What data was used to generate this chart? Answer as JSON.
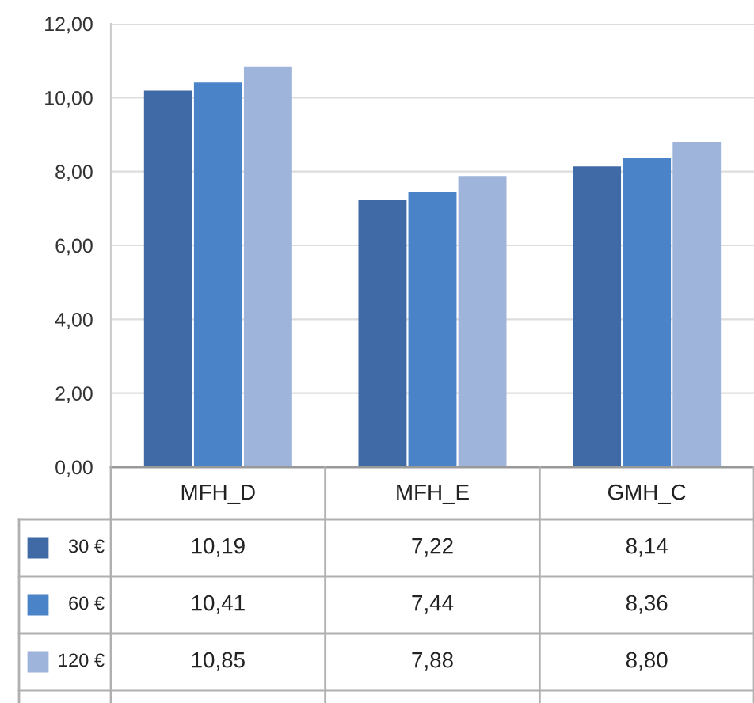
{
  "chart_data": {
    "type": "bar",
    "categories": [
      "MFH_D",
      "MFH_E",
      "GMH_C"
    ],
    "series": [
      {
        "name": "30 €",
        "color": "#406aa6",
        "values": [
          10.19,
          7.22,
          8.14
        ],
        "value_labels": [
          "10,19",
          "7,22",
          "8,14"
        ]
      },
      {
        "name": "60 €",
        "color": "#4a83c7",
        "values": [
          10.41,
          7.44,
          8.36
        ],
        "value_labels": [
          "10,41",
          "7,44",
          "8,36"
        ]
      },
      {
        "name": "120 €",
        "color": "#9fb4da",
        "values": [
          10.85,
          7.88,
          8.8
        ],
        "value_labels": [
          "10,85",
          "7,88",
          "8,80"
        ]
      }
    ],
    "ylim": [
      0,
      12
    ],
    "yticks": [
      {
        "value": 0,
        "label": "0,00"
      },
      {
        "value": 2,
        "label": "2,00"
      },
      {
        "value": 4,
        "label": "4,00"
      },
      {
        "value": 6,
        "label": "6,00"
      },
      {
        "value": 8,
        "label": "8,00"
      },
      {
        "value": 10,
        "label": "10,00"
      },
      {
        "value": 12,
        "label": "12,00"
      }
    ],
    "grid": "y",
    "legend": "bottom left"
  }
}
